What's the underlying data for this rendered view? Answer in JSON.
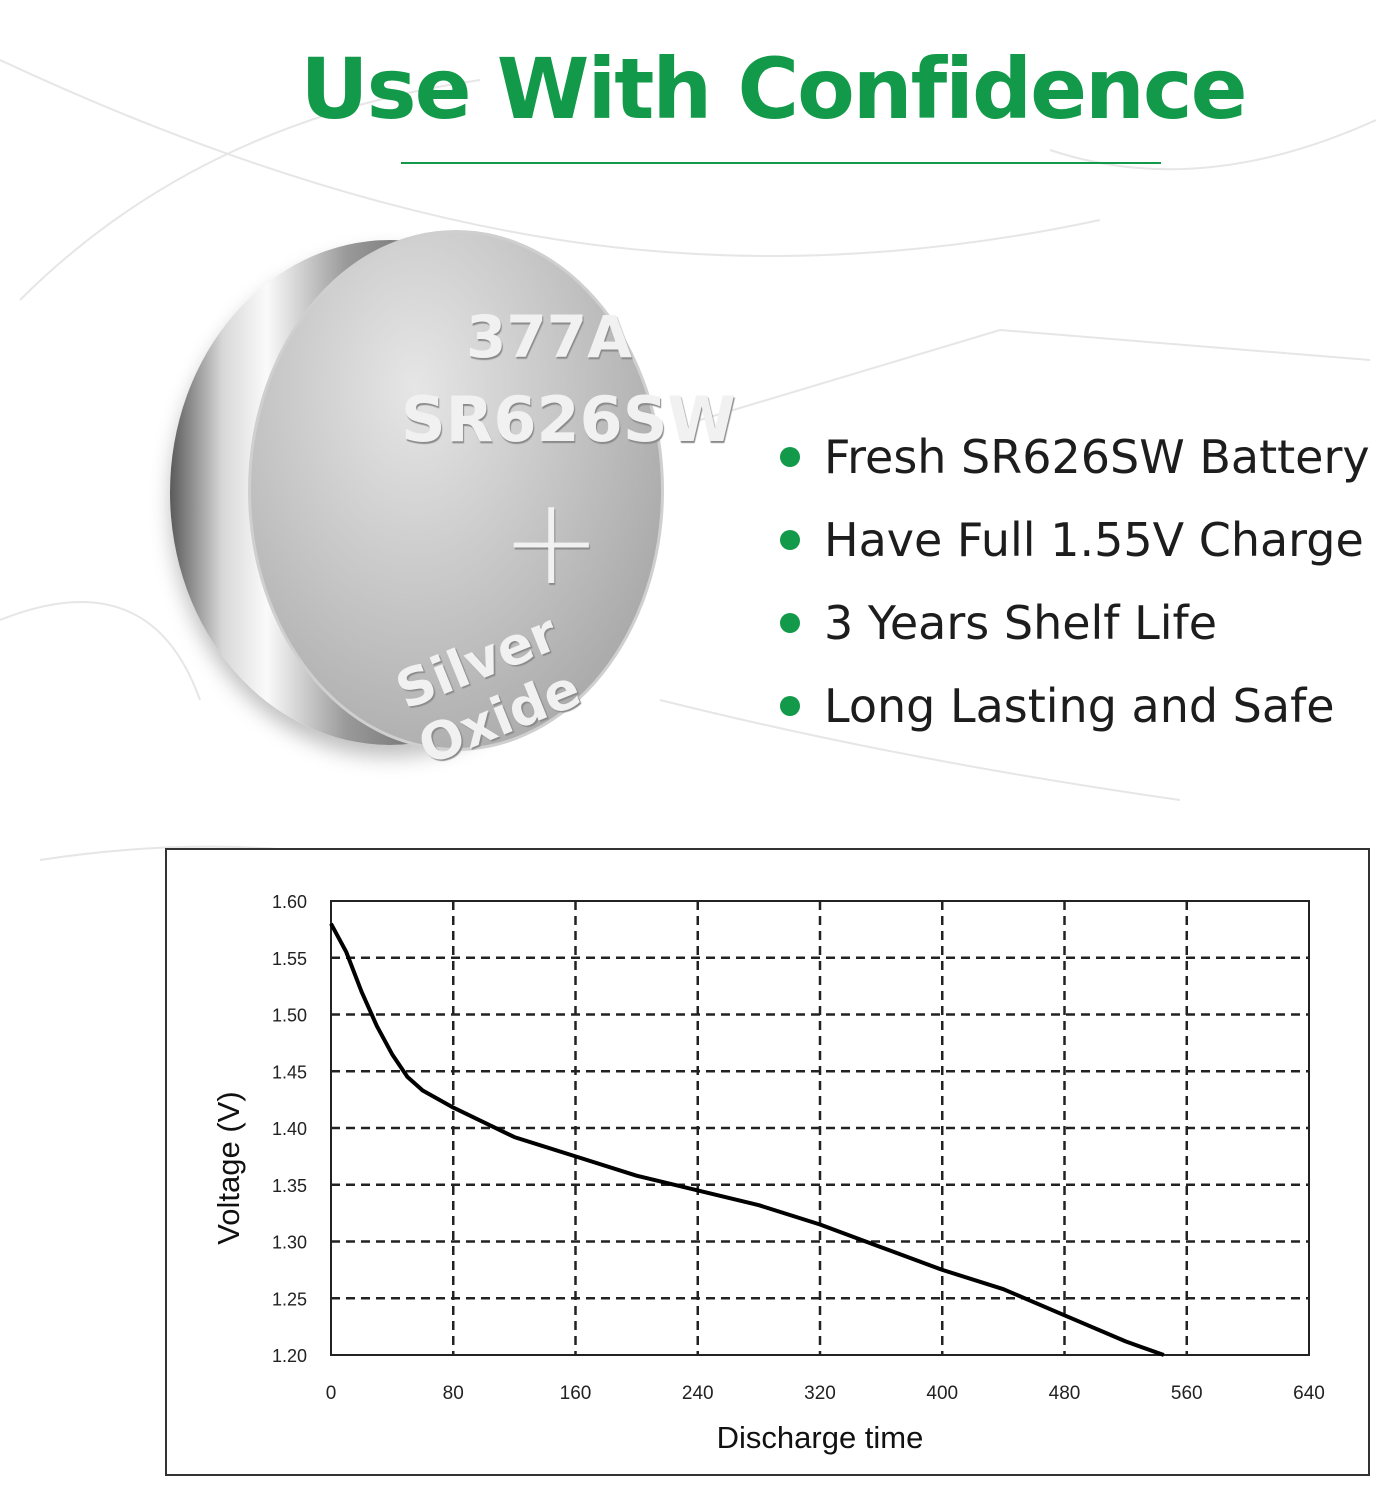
{
  "title": "Use With Confidence",
  "battery": {
    "line1": "377A",
    "line2": "SR626SW",
    "plus": "+",
    "line3": "Silver Oxide"
  },
  "features": [
    "Fresh SR626SW Battery",
    "Have Full 1.55V Charge",
    "3 Years Shelf Life",
    "Long Lasting and Safe"
  ],
  "colors": {
    "accent": "#129a4a",
    "curve": "#000000"
  },
  "chart_data": {
    "type": "line",
    "xlabel": "Discharge time",
    "ylabel": "Voltage (V)",
    "xlim": [
      0,
      640
    ],
    "ylim": [
      1.2,
      1.6
    ],
    "xticks": [
      "0",
      "80",
      "160",
      "240",
      "320",
      "400",
      "480",
      "560",
      "640"
    ],
    "yticks": [
      "1.20",
      "1.25",
      "1.30",
      "1.35",
      "1.40",
      "1.45",
      "1.50",
      "1.55",
      "1.60"
    ],
    "grid": "dashed",
    "series": [
      {
        "x": [
          0,
          10,
          20,
          30,
          40,
          50,
          60,
          80,
          100,
          120,
          160,
          200,
          240,
          280,
          320,
          360,
          400,
          440,
          480,
          520,
          545
        ],
        "y": [
          1.58,
          1.555,
          1.52,
          1.49,
          1.465,
          1.445,
          1.433,
          1.418,
          1.405,
          1.392,
          1.375,
          1.358,
          1.345,
          1.332,
          1.315,
          1.295,
          1.275,
          1.258,
          1.235,
          1.212,
          1.2
        ]
      }
    ]
  }
}
